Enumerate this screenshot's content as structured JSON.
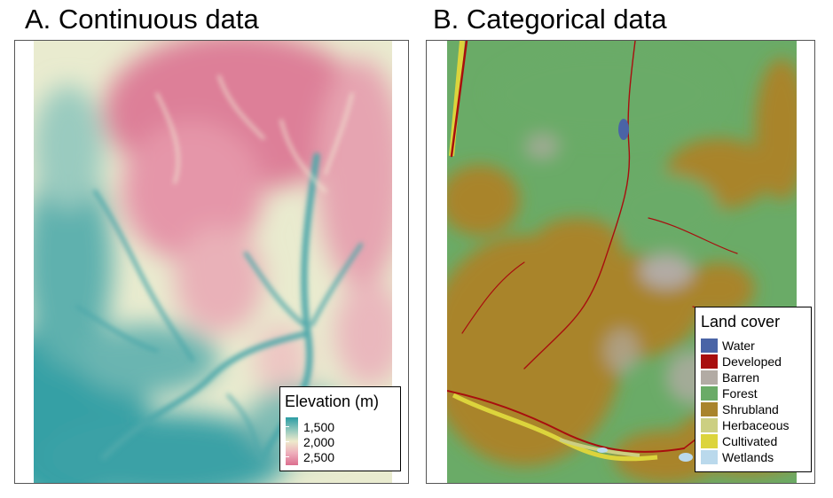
{
  "panels": {
    "a": {
      "title": "A. Continuous data",
      "legend": {
        "title": "Elevation (m)",
        "labels": [
          "1,500",
          "2,000",
          "2,500"
        ],
        "ramp_colors": [
          "#2a9ca3",
          "#8cc6bc",
          "#eeeacc",
          "#eeaebb",
          "#dc6f8f"
        ]
      }
    },
    "b": {
      "title": "B. Categorical data",
      "legend": {
        "title": "Land cover",
        "items": [
          {
            "label": "Water",
            "color": "#4a64a6"
          },
          {
            "label": "Developed",
            "color": "#a80e0e"
          },
          {
            "label": "Barren",
            "color": "#b2aba4"
          },
          {
            "label": "Forest",
            "color": "#6aab67"
          },
          {
            "label": "Shrubland",
            "color": "#a9842c"
          },
          {
            "label": "Herbaceous",
            "color": "#cccf82"
          },
          {
            "label": "Cultivated",
            "color": "#dcd43c"
          },
          {
            "label": "Wetlands",
            "color": "#bad9ec"
          }
        ]
      }
    }
  }
}
